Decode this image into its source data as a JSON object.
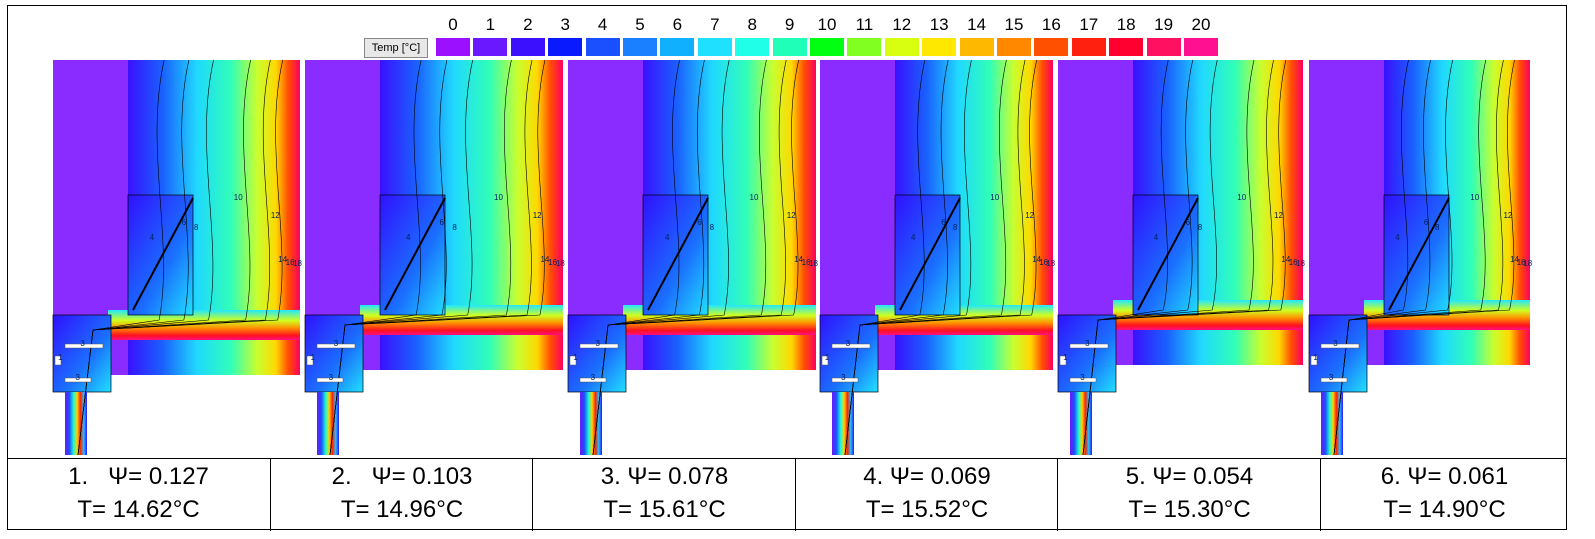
{
  "legend": {
    "button": "Temp [°C]",
    "scale": [
      {
        "label": "0",
        "color": "#9b10ff"
      },
      {
        "label": "1",
        "color": "#6a18ff"
      },
      {
        "label": "2",
        "color": "#3a10ff"
      },
      {
        "label": "3",
        "color": "#0a1aff"
      },
      {
        "label": "4",
        "color": "#1a50ff"
      },
      {
        "label": "5",
        "color": "#1a80ff"
      },
      {
        "label": "6",
        "color": "#10b0ff"
      },
      {
        "label": "7",
        "color": "#20e0ff"
      },
      {
        "label": "8",
        "color": "#20ffe8"
      },
      {
        "label": "9",
        "color": "#20ffb8"
      },
      {
        "label": "10",
        "color": "#00ff10"
      },
      {
        "label": "11",
        "color": "#80ff20"
      },
      {
        "label": "12",
        "color": "#d8ff10"
      },
      {
        "label": "13",
        "color": "#ffe800"
      },
      {
        "label": "14",
        "color": "#ffb800"
      },
      {
        "label": "15",
        "color": "#ff8800"
      },
      {
        "label": "16",
        "color": "#ff5000"
      },
      {
        "label": "17",
        "color": "#ff2010"
      },
      {
        "label": "18",
        "color": "#ff0030"
      },
      {
        "label": "19",
        "color": "#ff1060"
      },
      {
        "label": "20",
        "color": "#ff1090"
      }
    ]
  },
  "panels": [
    {
      "caption_line1": "1.   Ψ= 0.127",
      "caption_line2": "T= 14.62°C",
      "contours": [
        "10",
        "12",
        "14",
        "16",
        "18",
        "8",
        "6",
        "4",
        "3",
        "1",
        "3"
      ]
    },
    {
      "caption_line1": "2.   Ψ= 0.103",
      "caption_line2": "T= 14.96°C",
      "contours": [
        "10",
        "12",
        "14",
        "16",
        "18",
        "8",
        "6",
        "4",
        "3",
        "1",
        "3"
      ]
    },
    {
      "caption_line1": "3. Ψ= 0.078",
      "caption_line2": "T= 15.61°C",
      "contours": [
        "10",
        "12",
        "14",
        "16",
        "18",
        "8",
        "6",
        "4",
        "3",
        "1",
        "3"
      ]
    },
    {
      "caption_line1": "4. Ψ= 0.069",
      "caption_line2": "T= 15.52°C",
      "contours": [
        "10",
        "12",
        "14",
        "16",
        "18",
        "8",
        "6",
        "4",
        "3",
        "1",
        "3"
      ]
    },
    {
      "caption_line1": "5. Ψ= 0.054",
      "caption_line2": "T= 15.30°C",
      "contours": [
        "10",
        "12",
        "14",
        "16",
        "18",
        "8",
        "6",
        "4",
        "3",
        "1",
        "3"
      ]
    },
    {
      "caption_line1": "6. Ψ= 0.061",
      "caption_line2": "T= 14.90°C",
      "contours": [
        "10",
        "12",
        "14",
        "16",
        "18",
        "8",
        "6",
        "4",
        "3",
        "1",
        "3"
      ]
    }
  ]
}
